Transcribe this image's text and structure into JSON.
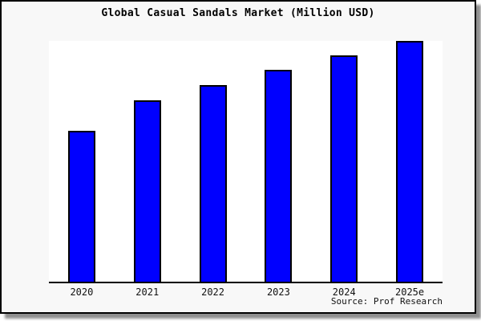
{
  "window": {
    "frame_background": "#f8f8f8",
    "frame_border_color": "#000000",
    "plot_background": "#ffffff"
  },
  "chart": {
    "title": "Global Casual Sandals Market (Million USD)",
    "source": "Source: Prof Research"
  },
  "chart_data": {
    "type": "bar",
    "title": "Global Casual Sandals Market (Million USD)",
    "categories": [
      "2020",
      "2021",
      "2022",
      "2023",
      "2024",
      "2025e"
    ],
    "values": [
      188,
      226,
      245,
      264,
      282,
      300
    ],
    "xlabel": "",
    "ylabel": "",
    "ylim": [
      0,
      300
    ],
    "grid": false,
    "legend": false,
    "y_axis_labels_visible": false,
    "values_estimated_from_pixels": true,
    "bar_color": "#0000ff",
    "bar_border_color": "#000000",
    "axis_line_color": "#000000"
  }
}
